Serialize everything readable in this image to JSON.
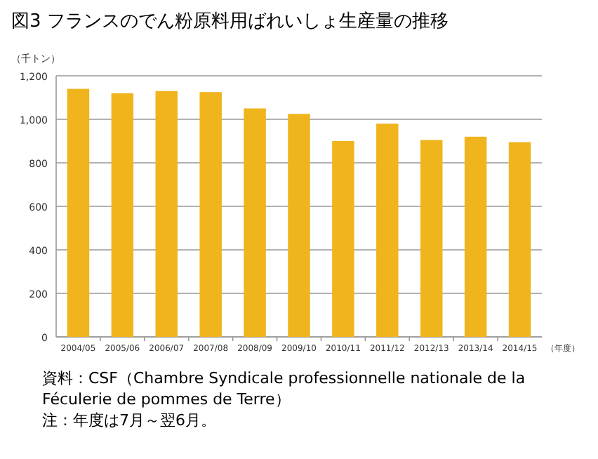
{
  "chart_data": {
    "type": "bar",
    "title": "図3 フランスのでん粉原料用ばれいしょ生産量の推移",
    "ylabel": "（千トン）",
    "xlabel": "（年度）",
    "categories": [
      "2004/05",
      "2005/06",
      "2006/07",
      "2007/08",
      "2008/09",
      "2009/10",
      "2010/11",
      "2011/12",
      "2012/13",
      "2013/14",
      "2014/15"
    ],
    "values": [
      1140,
      1120,
      1130,
      1125,
      1050,
      1025,
      900,
      980,
      905,
      920,
      895
    ],
    "color": "#f0b41c",
    "ylim": [
      0,
      1200
    ],
    "yticks": [
      0,
      {
        "value": 200,
        "label": "200"
      },
      {
        "value": 400,
        "label": "400"
      },
      {
        "value": 600,
        "label": "600"
      },
      {
        "value": 800,
        "label": "800"
      },
      {
        "value": 1000,
        "label": "1,000"
      },
      {
        "value": 1200,
        "label": "1,200"
      }
    ],
    "grid": "y",
    "annotations": [
      "資料：CSF（Chambre Syndicale professionnelle nationale de la Féculerie de pommes de Terre）",
      "注：年度は7月～翌6月。"
    ]
  }
}
